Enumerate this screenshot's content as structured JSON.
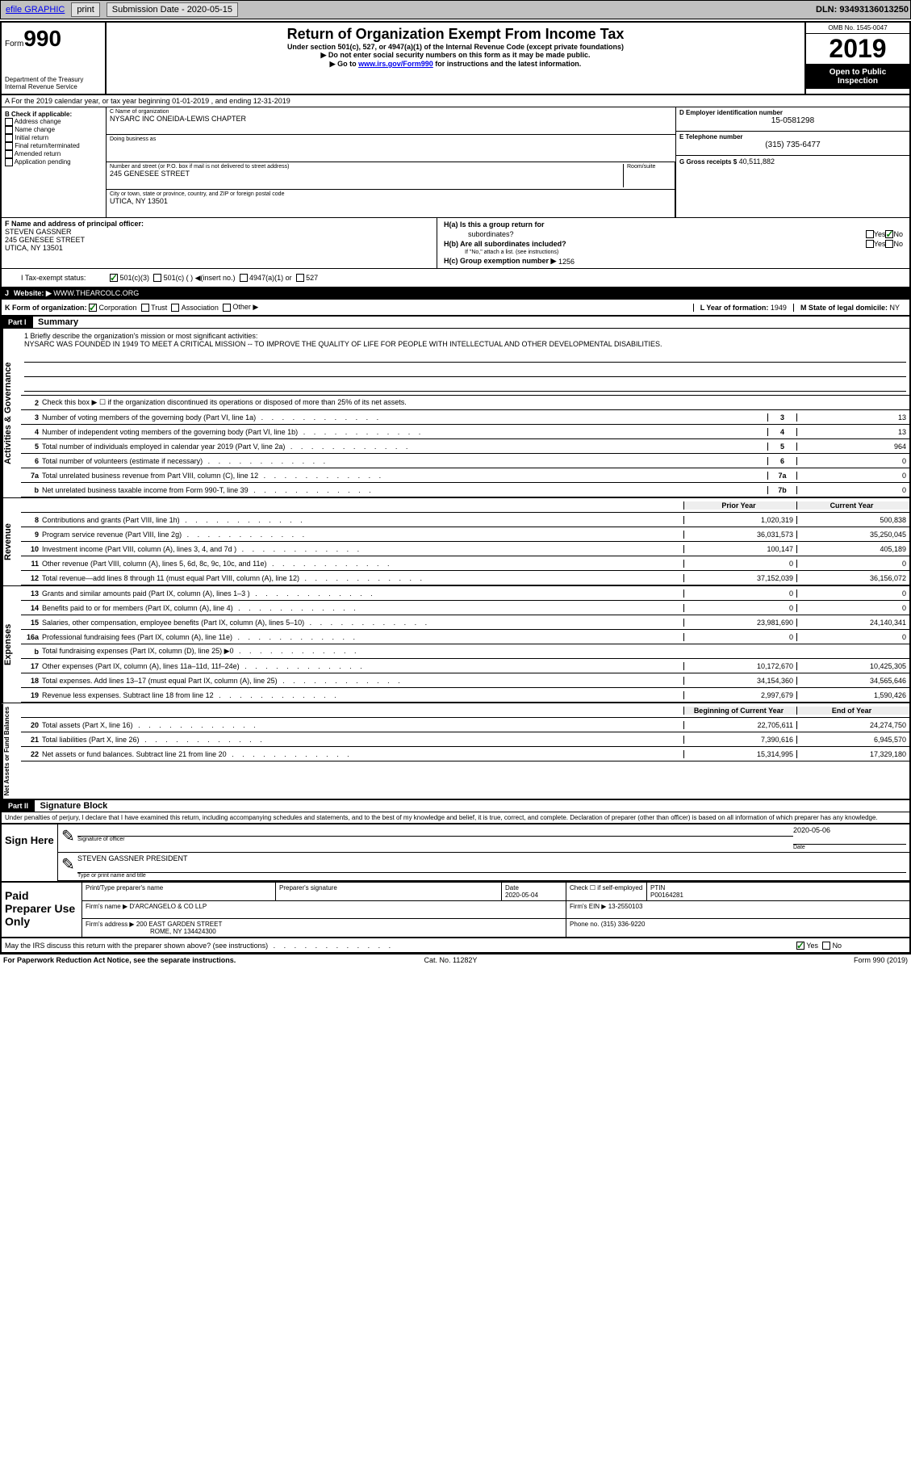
{
  "header_bar": {
    "efile": "efile GRAPHIC",
    "print": "print",
    "sub_label": "Submission Date - 2020-05-15",
    "dln": "DLN: 93493136013250"
  },
  "form_header": {
    "form_label": "Form",
    "form_num": "990",
    "dept": "Department of the Treasury\nInternal Revenue Service",
    "title": "Return of Organization Exempt From Income Tax",
    "sub1": "Under section 501(c), 527, or 4947(a)(1) of the Internal Revenue Code (except private foundations)",
    "sub2": "▶ Do not enter social security numbers on this form as it may be made public.",
    "sub3_pre": "▶ Go to ",
    "sub3_link": "www.irs.gov/Form990",
    "sub3_post": " for instructions and the latest information.",
    "omb": "OMB No. 1545-0047",
    "year": "2019",
    "inspect": "Open to Public Inspection"
  },
  "row_a": "A For the 2019 calendar year, or tax year beginning 01-01-2019   , and ending 12-31-2019",
  "col_b": {
    "title": "B Check if applicable:",
    "items": [
      "Address change",
      "Name change",
      "Initial return",
      "Final return/terminated",
      "Amended return",
      "Application pending"
    ]
  },
  "col_c": {
    "name_label": "C Name of organization",
    "name": "NYSARC INC ONEIDA-LEWIS CHAPTER",
    "dba_label": "Doing business as",
    "dba": "",
    "street_label": "Number and street (or P.O. box if mail is not delivered to street address)",
    "room_label": "Room/suite",
    "street": "245 GENESEE STREET",
    "city_label": "City or town, state or province, country, and ZIP or foreign postal code",
    "city": "UTICA, NY  13501"
  },
  "col_d": {
    "ein_label": "D Employer identification number",
    "ein": "15-0581298",
    "phone_label": "E Telephone number",
    "phone": "(315) 735-6477",
    "gross_label": "G Gross receipts $",
    "gross": "40,511,882"
  },
  "row_f": {
    "label": "F  Name and address of principal officer:",
    "name": "STEVEN GASSNER",
    "addr1": "245 GENESEE STREET",
    "addr2": "UTICA, NY  13501"
  },
  "row_h": {
    "a_label": "H(a)  Is this a group return for",
    "a_sub": "subordinates?",
    "b_label": "H(b)  Are all subordinates included?",
    "b_note": "If \"No,\" attach a list. (see instructions)",
    "c_label": "H(c)  Group exemption number ▶",
    "c_val": "1256",
    "yes": "Yes",
    "no": "No"
  },
  "row_i": {
    "label": "I   Tax-exempt status:",
    "opts": [
      "501(c)(3)",
      "501(c) (  ) ◀(insert no.)",
      "4947(a)(1) or",
      "527"
    ]
  },
  "row_j": {
    "label": "Website: ▶",
    "val": "WWW.THEARCOLC.ORG"
  },
  "row_k": {
    "label": "K Form of organization:",
    "opts": [
      "Corporation",
      "Trust",
      "Association",
      "Other ▶"
    ],
    "l_label": "L Year of formation:",
    "l_val": "1949",
    "m_label": "M State of legal domicile:",
    "m_val": "NY"
  },
  "part1": {
    "hdr": "Part I",
    "title": "Summary",
    "mission_label": "1  Briefly describe the organization's mission or most significant activities:",
    "mission": "NYSARC WAS FOUNDED IN 1949 TO MEET A CRITICAL MISSION -- TO IMPROVE THE QUALITY OF LIFE FOR PEOPLE WITH INTELLECTUAL AND OTHER DEVELOPMENTAL DISABILITIES.",
    "line2": "Check this box ▶ ☐  if the organization discontinued its operations or disposed of more than 25% of its net assets."
  },
  "activities": {
    "side": "Activities & Governance",
    "rows": [
      {
        "n": "3",
        "t": "Number of voting members of the governing body (Part VI, line 1a)",
        "box": "3",
        "v": "13"
      },
      {
        "n": "4",
        "t": "Number of independent voting members of the governing body (Part VI, line 1b)",
        "box": "4",
        "v": "13"
      },
      {
        "n": "5",
        "t": "Total number of individuals employed in calendar year 2019 (Part V, line 2a)",
        "box": "5",
        "v": "964"
      },
      {
        "n": "6",
        "t": "Total number of volunteers (estimate if necessary)",
        "box": "6",
        "v": "0"
      },
      {
        "n": "7a",
        "t": "Total unrelated business revenue from Part VIII, column (C), line 12",
        "box": "7a",
        "v": "0"
      },
      {
        "n": "b",
        "t": "Net unrelated business taxable income from Form 990-T, line 39",
        "box": "7b",
        "v": "0"
      }
    ]
  },
  "two_col_hdr": {
    "prior": "Prior Year",
    "current": "Current Year"
  },
  "revenue": {
    "side": "Revenue",
    "rows": [
      {
        "n": "8",
        "t": "Contributions and grants (Part VIII, line 1h)",
        "p": "1,020,319",
        "c": "500,838"
      },
      {
        "n": "9",
        "t": "Program service revenue (Part VIII, line 2g)",
        "p": "36,031,573",
        "c": "35,250,045"
      },
      {
        "n": "10",
        "t": "Investment income (Part VIII, column (A), lines 3, 4, and 7d )",
        "p": "100,147",
        "c": "405,189"
      },
      {
        "n": "11",
        "t": "Other revenue (Part VIII, column (A), lines 5, 6d, 8c, 9c, 10c, and 11e)",
        "p": "0",
        "c": "0"
      },
      {
        "n": "12",
        "t": "Total revenue—add lines 8 through 11 (must equal Part VIII, column (A), line 12)",
        "p": "37,152,039",
        "c": "36,156,072"
      }
    ]
  },
  "expenses": {
    "side": "Expenses",
    "rows": [
      {
        "n": "13",
        "t": "Grants and similar amounts paid (Part IX, column (A), lines 1–3 )",
        "p": "0",
        "c": "0"
      },
      {
        "n": "14",
        "t": "Benefits paid to or for members (Part IX, column (A), line 4)",
        "p": "0",
        "c": "0"
      },
      {
        "n": "15",
        "t": "Salaries, other compensation, employee benefits (Part IX, column (A), lines 5–10)",
        "p": "23,981,690",
        "c": "24,140,341"
      },
      {
        "n": "16a",
        "t": "Professional fundraising fees (Part IX, column (A), line 11e)",
        "p": "0",
        "c": "0"
      },
      {
        "n": "b",
        "t": "Total fundraising expenses (Part IX, column (D), line 25) ▶0",
        "p": "",
        "c": "",
        "shade": true
      },
      {
        "n": "17",
        "t": "Other expenses (Part IX, column (A), lines 11a–11d, 11f–24e)",
        "p": "10,172,670",
        "c": "10,425,305"
      },
      {
        "n": "18",
        "t": "Total expenses. Add lines 13–17 (must equal Part IX, column (A), line 25)",
        "p": "34,154,360",
        "c": "34,565,646"
      },
      {
        "n": "19",
        "t": "Revenue less expenses. Subtract line 18 from line 12",
        "p": "2,997,679",
        "c": "1,590,426"
      }
    ]
  },
  "net_hdr": {
    "begin": "Beginning of Current Year",
    "end": "End of Year"
  },
  "net": {
    "side": "Net Assets or Fund Balances",
    "rows": [
      {
        "n": "20",
        "t": "Total assets (Part X, line 16)",
        "p": "22,705,611",
        "c": "24,274,750"
      },
      {
        "n": "21",
        "t": "Total liabilities (Part X, line 26)",
        "p": "7,390,616",
        "c": "6,945,570"
      },
      {
        "n": "22",
        "t": "Net assets or fund balances. Subtract line 21 from line 20",
        "p": "15,314,995",
        "c": "17,329,180"
      }
    ]
  },
  "part2": {
    "hdr": "Part II",
    "title": "Signature Block",
    "penalty": "Under penalties of perjury, I declare that I have examined this return, including accompanying schedules and statements, and to the best of my knowledge and belief, it is true, correct, and complete. Declaration of preparer (other than officer) is based on all information of which preparer has any knowledge."
  },
  "sign": {
    "left": "Sign Here",
    "sig_label": "Signature of officer",
    "date_label": "Date",
    "date": "2020-05-06",
    "name": "STEVEN GASSNER  PRESIDENT",
    "name_label": "Type or print name and title"
  },
  "paid": {
    "left": "Paid Preparer Use Only",
    "r1": {
      "c1": "Print/Type preparer's name",
      "c2": "Preparer's signature",
      "c3": "Date",
      "c3v": "2020-05-04",
      "c4": "Check ☐ if self-employed",
      "c5": "PTIN",
      "c5v": "P00164281"
    },
    "r2": {
      "c1": "Firm's name    ▶",
      "c1v": "D'ARCANGELO & CO LLP",
      "c2": "Firm's EIN ▶",
      "c2v": "13-2550103"
    },
    "r3": {
      "c1": "Firm's address ▶",
      "c1v": "200 EAST GARDEN STREET",
      "c2": "Phone no.",
      "c2v": "(315) 336-9220"
    },
    "r3b": "ROME, NY  134424300"
  },
  "discuss": {
    "q": "May the IRS discuss this return with the preparer shown above? (see instructions)",
    "yes": "Yes",
    "no": "No"
  },
  "footer": {
    "left": "For Paperwork Reduction Act Notice, see the separate instructions.",
    "mid": "Cat. No. 11282Y",
    "right": "Form 990 (2019)"
  }
}
